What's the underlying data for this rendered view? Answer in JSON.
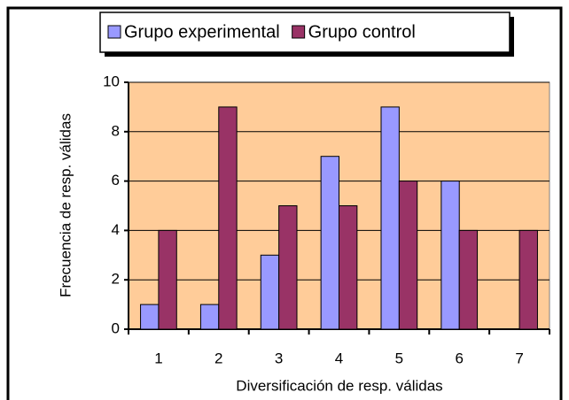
{
  "chart_data": {
    "type": "bar",
    "xlabel": "Diversificación de resp. válidas",
    "ylabel": "Frecuencia de resp. válidas",
    "categories": [
      "1",
      "2",
      "3",
      "4",
      "5",
      "6",
      "7"
    ],
    "series": [
      {
        "name": "Grupo experimental",
        "color": "#9999ff",
        "values": [
          1,
          1,
          3,
          7,
          9,
          6,
          0
        ]
      },
      {
        "name": "Grupo control",
        "color": "#993366",
        "values": [
          4,
          9,
          5,
          5,
          6,
          4,
          4
        ]
      }
    ],
    "ylim": [
      0,
      10
    ],
    "yticks": [
      0,
      2,
      4,
      6,
      8,
      10
    ],
    "grid": true,
    "legend": "top"
  }
}
